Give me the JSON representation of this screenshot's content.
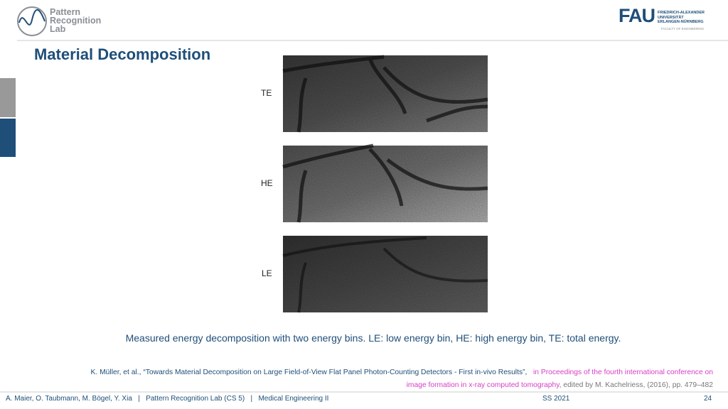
{
  "header": {
    "logo_lines": [
      "Pattern",
      "Recognition",
      "Lab"
    ],
    "university_logo": {
      "mark": "FAU",
      "lines": [
        "FRIEDRICH-ALEXANDER",
        "UNIVERSITÄT",
        "ERLANGEN-NÜRNBERG"
      ],
      "faculty": "FACULTY OF ENGINEERING"
    }
  },
  "title": "Material Decomposition",
  "figure": {
    "labels": [
      "TE",
      "HE",
      "LE"
    ],
    "caption": "Measured energy decomposition with two energy bins. LE: low energy bin, HE: high energy bin, TE: total energy."
  },
  "reference": {
    "citation": "K. Müller, et al., “Towards Material Decomposition on Large Field-of-View Flat Panel Photon-Counting Detectors - First in-vivo Results”,",
    "venue_lines": [
      "in Proceedings of the fourth international conference on",
      "image formation in x-ray computed tomography"
    ],
    "rest": ", edited by M. Kachelriess, (2016), pp. 479–482"
  },
  "footer": {
    "authors": "A. Maier, O. Taubmann, M. Bögel, Y. Xia",
    "separator": "|",
    "lab": "Pattern Recognition Lab (CS 5)",
    "course": "Medical Engineering II",
    "semester": "SS 2021",
    "page": "24"
  }
}
